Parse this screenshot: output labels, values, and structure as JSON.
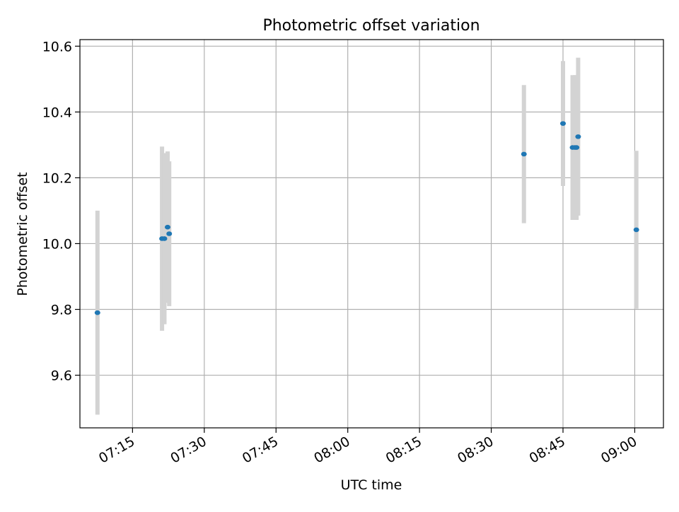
{
  "chart_data": {
    "type": "scatter",
    "title": "Photometric offset variation",
    "xlabel": "UTC time",
    "ylabel": "Photometric offset",
    "xlim": [
      "07:04",
      "09:06"
    ],
    "ylim": [
      9.44,
      10.62
    ],
    "x_ticks": [
      "07:15",
      "07:30",
      "07:45",
      "08:00",
      "08:15",
      "08:30",
      "08:45",
      "09:00"
    ],
    "y_ticks": [
      9.6,
      9.8,
      10.0,
      10.2,
      10.4,
      10.6
    ],
    "y_tick_labels": [
      "9.6",
      "9.8",
      "10.0",
      "10.2",
      "10.4",
      "10.6"
    ],
    "grid": true,
    "point_color": "#1f77b4",
    "errorbar_color": "#d3d3d3",
    "points": [
      {
        "x": "07:07:40",
        "y": 9.79,
        "yerr": 0.31
      },
      {
        "x": "07:21:10",
        "y": 10.015,
        "yerr": 0.28
      },
      {
        "x": "07:21:40",
        "y": 10.015,
        "yerr": 0.26
      },
      {
        "x": "07:22:20",
        "y": 10.05,
        "yerr": 0.23
      },
      {
        "x": "07:22:40",
        "y": 10.03,
        "yerr": 0.22
      },
      {
        "x": "08:36:50",
        "y": 10.272,
        "yerr": 0.21
      },
      {
        "x": "08:45:00",
        "y": 10.365,
        "yerr": 0.19
      },
      {
        "x": "08:47:00",
        "y": 10.292,
        "yerr": 0.22
      },
      {
        "x": "08:47:30",
        "y": 10.292,
        "yerr": 0.22
      },
      {
        "x": "08:47:50",
        "y": 10.292,
        "yerr": 0.22
      },
      {
        "x": "08:48:10",
        "y": 10.325,
        "yerr": 0.24
      },
      {
        "x": "09:00:20",
        "y": 10.042,
        "yerr": 0.24
      }
    ]
  }
}
